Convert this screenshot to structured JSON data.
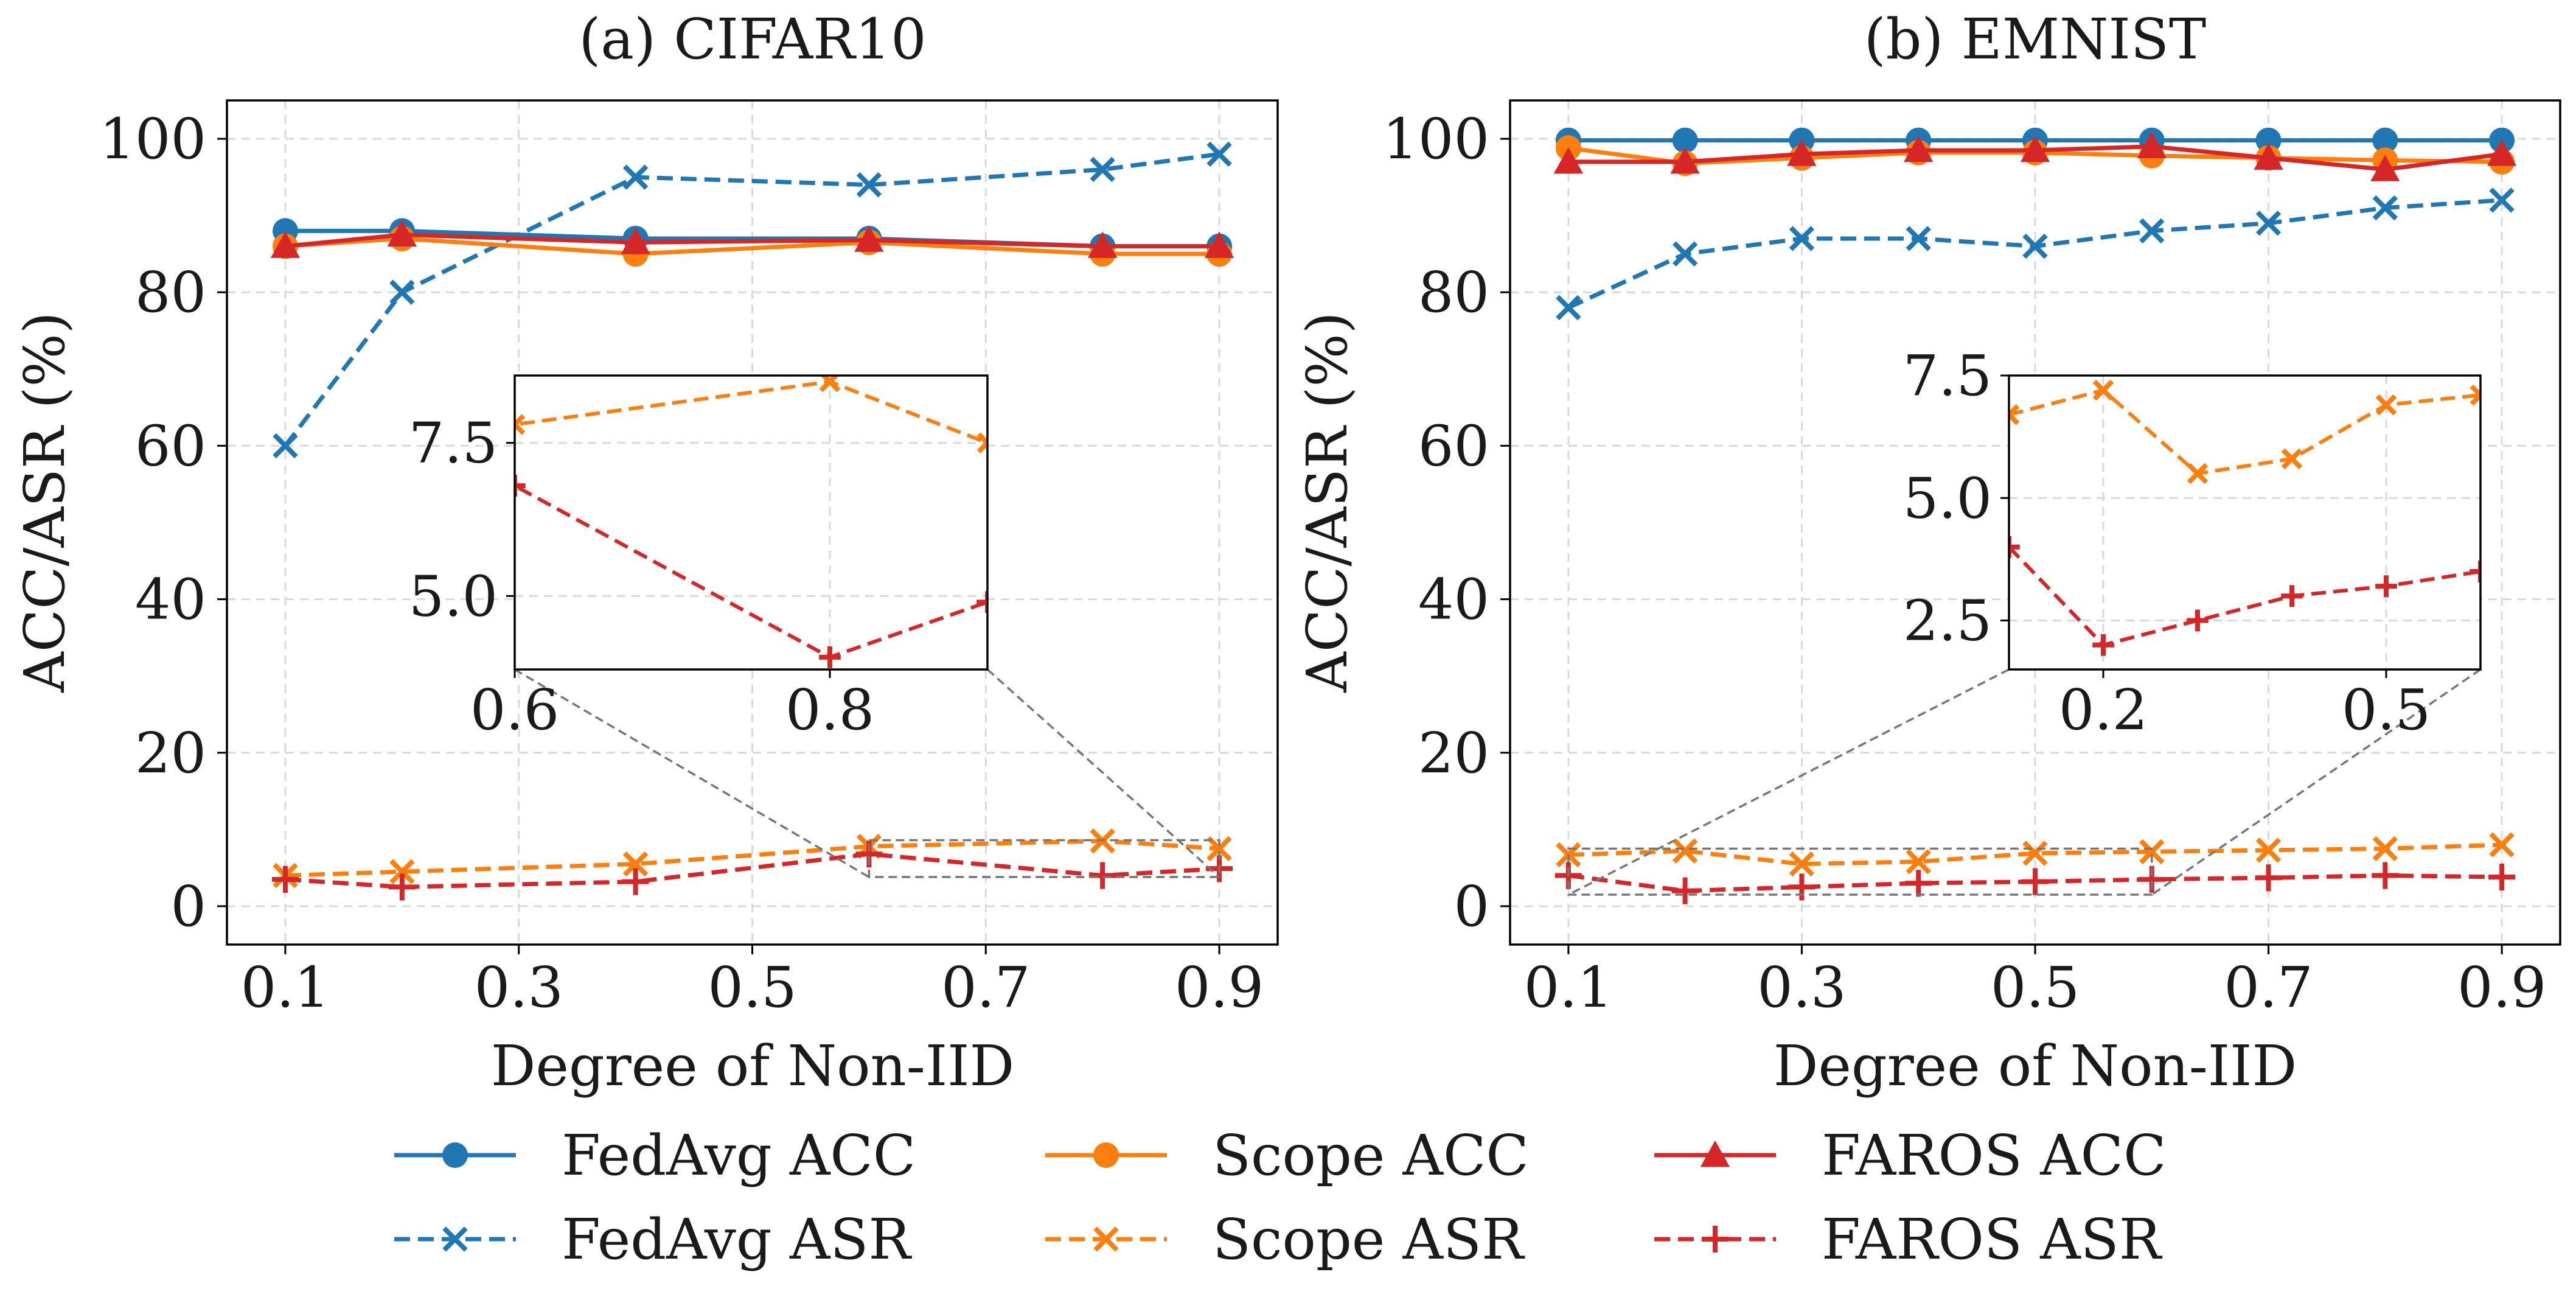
{
  "colors": {
    "fedavg": "#1f77b4",
    "scope": "#ff7f0e",
    "faros": "#d62728",
    "grid": "#d9d9d9",
    "zoom": "#777777",
    "axis": "#000000"
  },
  "legend": {
    "position": "bottom-center",
    "ncol": 3,
    "entries": [
      {
        "label": "FedAvg ACC",
        "color_key": "fedavg",
        "marker": "circle",
        "dashed": false
      },
      {
        "label": "FedAvg ASR",
        "color_key": "fedavg",
        "marker": "x",
        "dashed": true
      },
      {
        "label": "Scope ACC",
        "color_key": "scope",
        "marker": "circle",
        "dashed": false
      },
      {
        "label": "Scope ASR",
        "color_key": "scope",
        "marker": "x",
        "dashed": true
      },
      {
        "label": "FAROS ACC",
        "color_key": "faros",
        "marker": "triangle",
        "dashed": false
      },
      {
        "label": "FAROS ASR",
        "color_key": "faros",
        "marker": "plus",
        "dashed": true
      }
    ]
  },
  "chart_data": [
    {
      "type": "line",
      "title": "(a) CIFAR10",
      "xlabel": "Degree of Non-IID",
      "ylabel": "ACC/ASR (%)",
      "xlim": [
        0.05,
        0.95
      ],
      "ylim": [
        -5,
        105
      ],
      "xticks": [
        0.1,
        0.3,
        0.5,
        0.7,
        0.9
      ],
      "xtick_labels": [
        "0.1",
        "0.3",
        "0.5",
        "0.7",
        "0.9"
      ],
      "yticks": [
        0,
        20,
        40,
        60,
        80,
        100
      ],
      "ytick_labels": [
        "0",
        "20",
        "40",
        "60",
        "80",
        "100"
      ],
      "grid": true,
      "x": [
        0.1,
        0.2,
        0.4,
        0.6,
        0.8,
        0.9
      ],
      "series": [
        {
          "name": "FedAvg ACC",
          "values": [
            88,
            88,
            87,
            87,
            86,
            86
          ]
        },
        {
          "name": "FedAvg ASR",
          "values": [
            60,
            80,
            95,
            94,
            96,
            98
          ]
        },
        {
          "name": "Scope ACC",
          "values": [
            86,
            87,
            85,
            86.5,
            85,
            85
          ]
        },
        {
          "name": "Scope ASR",
          "values": [
            4,
            4.5,
            5.5,
            7.8,
            8.5,
            7.5
          ]
        },
        {
          "name": "FAROS ACC",
          "values": [
            86,
            87.5,
            86.5,
            86.8,
            86,
            86
          ]
        },
        {
          "name": "FAROS ASR",
          "values": [
            3.5,
            2.5,
            3.2,
            6.8,
            4.0,
            4.9
          ]
        }
      ],
      "inset": {
        "series_names": [
          "Scope ASR",
          "FAROS ASR"
        ],
        "xlim": [
          0.6,
          0.9
        ],
        "ylim": [
          3.8,
          8.6
        ],
        "xticks": [
          0.6,
          0.8
        ],
        "xtick_labels": [
          "0.6",
          "0.8"
        ],
        "yticks": [
          5.0,
          7.5
        ],
        "ytick_labels": [
          "5.0",
          "7.5"
        ],
        "location": "center"
      }
    },
    {
      "type": "line",
      "title": "(b) EMNIST",
      "xlabel": "Degree of Non-IID",
      "ylabel": "ACC/ASR (%)",
      "xlim": [
        0.05,
        0.95
      ],
      "ylim": [
        -5,
        105
      ],
      "xticks": [
        0.1,
        0.3,
        0.5,
        0.7,
        0.9
      ],
      "xtick_labels": [
        "0.1",
        "0.3",
        "0.5",
        "0.7",
        "0.9"
      ],
      "yticks": [
        0,
        20,
        40,
        60,
        80,
        100
      ],
      "ytick_labels": [
        "0",
        "20",
        "40",
        "60",
        "80",
        "100"
      ],
      "grid": true,
      "x": [
        0.1,
        0.2,
        0.3,
        0.4,
        0.5,
        0.6,
        0.7,
        0.8,
        0.9
      ],
      "series": [
        {
          "name": "FedAvg ACC",
          "values": [
            99.8,
            99.8,
            99.8,
            99.8,
            99.8,
            99.8,
            99.8,
            99.8,
            99.8
          ]
        },
        {
          "name": "FedAvg ASR",
          "values": [
            78,
            85,
            87,
            87,
            86,
            88,
            89,
            91,
            92
          ]
        },
        {
          "name": "Scope ACC",
          "values": [
            98.8,
            96.8,
            97.5,
            98.2,
            98.2,
            97.8,
            97.5,
            97.2,
            97.0
          ]
        },
        {
          "name": "Scope ASR",
          "values": [
            6.7,
            7.2,
            5.5,
            5.8,
            6.9,
            7.1,
            7.3,
            7.5,
            8.0
          ]
        },
        {
          "name": "FAROS ACC",
          "values": [
            97,
            97,
            98,
            98.5,
            98.5,
            99,
            97.5,
            96,
            98
          ]
        },
        {
          "name": "FAROS ASR",
          "values": [
            4.0,
            2.0,
            2.5,
            3.0,
            3.2,
            3.5,
            3.7,
            4.0,
            3.8
          ]
        }
      ],
      "inset": {
        "series_names": [
          "Scope ASR",
          "FAROS ASR"
        ],
        "xlim": [
          0.1,
          0.6
        ],
        "ylim": [
          1.5,
          7.5
        ],
        "xticks": [
          0.2,
          0.5
        ],
        "xtick_labels": [
          "0.2",
          "0.5"
        ],
        "yticks": [
          2.5,
          5.0,
          7.5
        ],
        "ytick_labels": [
          "2.5",
          "5.0",
          "7.5"
        ],
        "location": "center-right"
      }
    }
  ]
}
